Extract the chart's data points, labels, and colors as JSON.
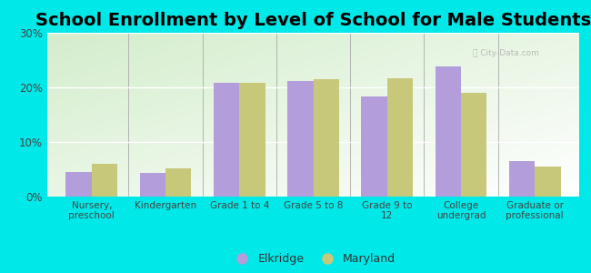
{
  "title": "School Enrollment by Level of School for Male Students",
  "categories": [
    "Nursery,\npreschool",
    "Kindergarten",
    "Grade 1 to 4",
    "Grade 5 to 8",
    "Grade 9 to\n12",
    "College\nundergrad",
    "Graduate or\nprofessional"
  ],
  "elkridge_values": [
    4.5,
    4.3,
    20.8,
    21.2,
    18.4,
    23.8,
    6.5
  ],
  "maryland_values": [
    6.0,
    5.1,
    20.9,
    21.5,
    21.6,
    19.0,
    5.5
  ],
  "elkridge_color": "#b39ddb",
  "maryland_color": "#c8c87a",
  "background_color": "#00e8e8",
  "ylim": [
    0,
    30
  ],
  "yticks": [
    0,
    10,
    20,
    30
  ],
  "ytick_labels": [
    "0%",
    "10%",
    "20%",
    "30%"
  ],
  "title_fontsize": 14,
  "legend_labels": [
    "Elkridge",
    "Maryland"
  ],
  "bar_width": 0.35
}
